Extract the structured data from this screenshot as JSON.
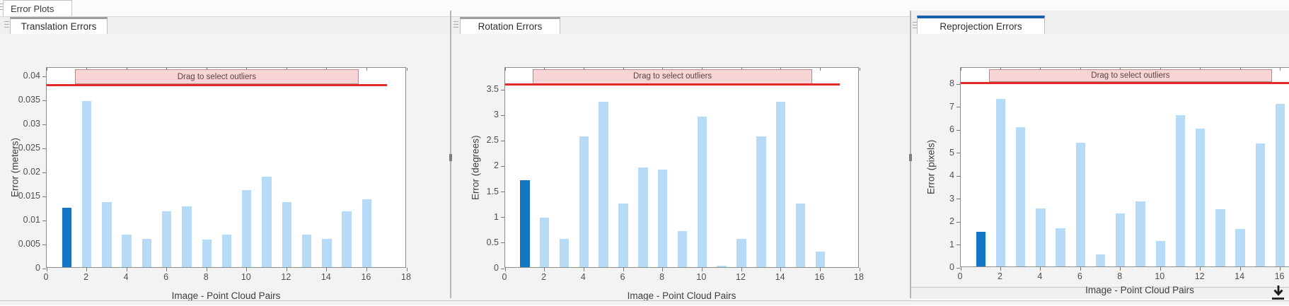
{
  "window": {
    "app_tab": "Error Plots"
  },
  "panels": [
    {
      "tab_label": "Translation Errors",
      "accent": "gray"
    },
    {
      "tab_label": "Rotation Errors",
      "accent": "gray"
    },
    {
      "tab_label": "Reprojection Errors",
      "accent": "blue"
    }
  ],
  "colors": {
    "bar_light": "#b6dbf7",
    "bar_selected": "#1477c5",
    "threshold_red": "#e02b28",
    "band_fill": "#f7d5d7",
    "band_border": "#b98a8a",
    "tab_accent_blue": "#1b62ae",
    "tab_accent_gray": "#9e9e9e"
  },
  "icons": {
    "export": "download-arrow-to-line"
  },
  "chart_data": [
    {
      "type": "bar",
      "panel": "Translation Errors",
      "xlabel": "Image - Point Cloud Pairs",
      "ylabel": "Error (meters)",
      "x": [
        1,
        2,
        3,
        4,
        5,
        6,
        7,
        8,
        9,
        10,
        11,
        12,
        13,
        14,
        15,
        16
      ],
      "values": [
        0.0123,
        0.0346,
        0.0136,
        0.0067,
        0.0059,
        0.0117,
        0.0127,
        0.0057,
        0.0068,
        0.0161,
        0.0188,
        0.0136,
        0.0067,
        0.0059,
        0.0117,
        0.0141
      ],
      "selected_bar_index": 0,
      "xlim": [
        0,
        18
      ],
      "xticks": [
        0,
        2,
        4,
        6,
        8,
        10,
        12,
        14,
        16,
        18
      ],
      "ylim": [
        0,
        0.0418
      ],
      "ytick_values": [
        0,
        0.005,
        0.01,
        0.015,
        0.02,
        0.025,
        0.03,
        0.035,
        0.04
      ],
      "ytick_labels": [
        "0",
        "0.005",
        "0.01",
        "0.015",
        "0.02",
        "0.025",
        "0.03",
        "0.035",
        "0.04"
      ],
      "threshold": 0.0382,
      "threshold_x_end": 17.0,
      "band": {
        "label": "Drag to select outliers",
        "x_start": 1.4,
        "x_end": 15.6
      },
      "grid": false,
      "legend": null
    },
    {
      "type": "bar",
      "panel": "Rotation Errors",
      "xlabel": "Image - Point Cloud Pairs",
      "ylabel": "Error (degrees)",
      "x": [
        1,
        2,
        3,
        4,
        5,
        6,
        7,
        8,
        9,
        10,
        11,
        12,
        13,
        14,
        15,
        16
      ],
      "values": [
        1.7,
        0.97,
        0.56,
        2.56,
        3.24,
        1.25,
        1.95,
        1.91,
        0.7,
        2.95,
        0.03,
        0.56,
        2.56,
        3.24,
        1.25,
        0.3
      ],
      "selected_bar_index": 0,
      "xlim": [
        0,
        18
      ],
      "xticks": [
        0,
        2,
        4,
        6,
        8,
        10,
        12,
        14,
        16,
        18
      ],
      "ylim": [
        0,
        3.93
      ],
      "ytick_values": [
        0,
        0.5,
        1,
        1.5,
        2,
        2.5,
        3,
        3.5
      ],
      "ytick_labels": [
        "0",
        "0.5",
        "1",
        "1.5",
        "2",
        "2.5",
        "3",
        "3.5"
      ],
      "threshold": 3.6,
      "threshold_x_end": 17.0,
      "band": {
        "label": "Drag to select outliers",
        "x_start": 1.4,
        "x_end": 15.6
      },
      "grid": false,
      "legend": null
    },
    {
      "type": "bar",
      "panel": "Reprojection Errors",
      "xlabel": "Image - Point Cloud Pairs",
      "ylabel": "Error (pixels)",
      "x": [
        1,
        2,
        3,
        4,
        5,
        6,
        7,
        8,
        9,
        10,
        11,
        12,
        13,
        14,
        15,
        16
      ],
      "values": [
        1.5,
        7.3,
        6.05,
        2.52,
        1.67,
        5.4,
        0.52,
        2.32,
        2.82,
        1.12,
        6.58,
        6.0,
        2.5,
        1.62,
        5.35,
        7.08
      ],
      "selected_bar_index": 0,
      "xlim": [
        0,
        18
      ],
      "xticks": [
        0,
        2,
        4,
        6,
        8,
        10,
        12,
        14,
        16
      ],
      "ylim": [
        0,
        8.71
      ],
      "ytick_values": [
        0,
        1,
        2,
        3,
        4,
        5,
        6,
        7,
        8
      ],
      "ytick_labels": [
        "0",
        "1",
        "2",
        "3",
        "4",
        "5",
        "6",
        "7",
        "8"
      ],
      "threshold": 8.06,
      "threshold_x_end": 16.5,
      "band": {
        "label": "Drag to select outliers",
        "x_start": 1.4,
        "x_end": 15.6
      },
      "grid": false,
      "legend": null
    }
  ]
}
